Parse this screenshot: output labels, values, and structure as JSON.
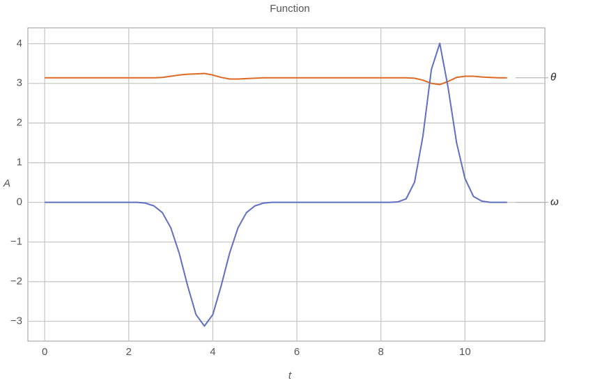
{
  "chart_data": {
    "type": "line",
    "title": "Function",
    "x_label": "t",
    "y_label": "A",
    "x": [
      0,
      0.2,
      0.4,
      0.6,
      0.8,
      1,
      1.2,
      1.4,
      1.6,
      1.8,
      2,
      2.2,
      2.4,
      2.6,
      2.8,
      3,
      3.2,
      3.4,
      3.6,
      3.8,
      4,
      4.2,
      4.4,
      4.6,
      4.8,
      5,
      5.2,
      5.4,
      5.6,
      5.8,
      6,
      6.2,
      6.4,
      6.6,
      6.8,
      7,
      7.2,
      7.4,
      7.6,
      7.8,
      8,
      8.2,
      8.4,
      8.6,
      8.8,
      9,
      9.2,
      9.4,
      9.6,
      9.8,
      10,
      10.2,
      10.4,
      10.6,
      10.8,
      11
    ],
    "series": [
      {
        "name": "θ",
        "color": "#dd6a22",
        "values": [
          3.14,
          3.14,
          3.14,
          3.14,
          3.14,
          3.14,
          3.14,
          3.14,
          3.14,
          3.14,
          3.14,
          3.14,
          3.14,
          3.14,
          3.15,
          3.18,
          3.21,
          3.23,
          3.24,
          3.25,
          3.21,
          3.15,
          3.11,
          3.11,
          3.12,
          3.13,
          3.14,
          3.14,
          3.14,
          3.14,
          3.14,
          3.14,
          3.14,
          3.14,
          3.14,
          3.14,
          3.14,
          3.14,
          3.14,
          3.14,
          3.14,
          3.14,
          3.14,
          3.14,
          3.13,
          3.08,
          3.0,
          2.97,
          3.05,
          3.15,
          3.18,
          3.18,
          3.16,
          3.15,
          3.14,
          3.14
        ]
      },
      {
        "name": "ω",
        "color": "#5f6fc4",
        "values": [
          0,
          0,
          0,
          0,
          0,
          0,
          0,
          0,
          0,
          0,
          0,
          0,
          -0.02,
          -0.09,
          -0.26,
          -0.64,
          -1.28,
          -2.1,
          -2.83,
          -3.12,
          -2.83,
          -2.1,
          -1.28,
          -0.64,
          -0.26,
          -0.09,
          -0.02,
          0,
          0,
          0,
          0,
          0,
          0,
          0,
          0,
          0,
          0,
          0,
          0,
          0,
          0,
          0,
          0.01,
          0.09,
          0.51,
          1.68,
          3.35,
          4.01,
          2.88,
          1.5,
          0.6,
          0.15,
          0.03,
          0,
          0,
          0
        ]
      }
    ],
    "xlim": [
      -0.4,
      11.9
    ],
    "ylim": [
      -3.5,
      4.4
    ],
    "xticks": [
      0,
      2,
      4,
      6,
      8,
      10
    ],
    "yticks": [
      {
        "value": -3,
        "label": "−3"
      },
      {
        "value": -2,
        "label": "−2"
      },
      {
        "value": -1,
        "label": "−1"
      },
      0,
      1,
      2,
      3,
      4
    ],
    "grid": true
  }
}
